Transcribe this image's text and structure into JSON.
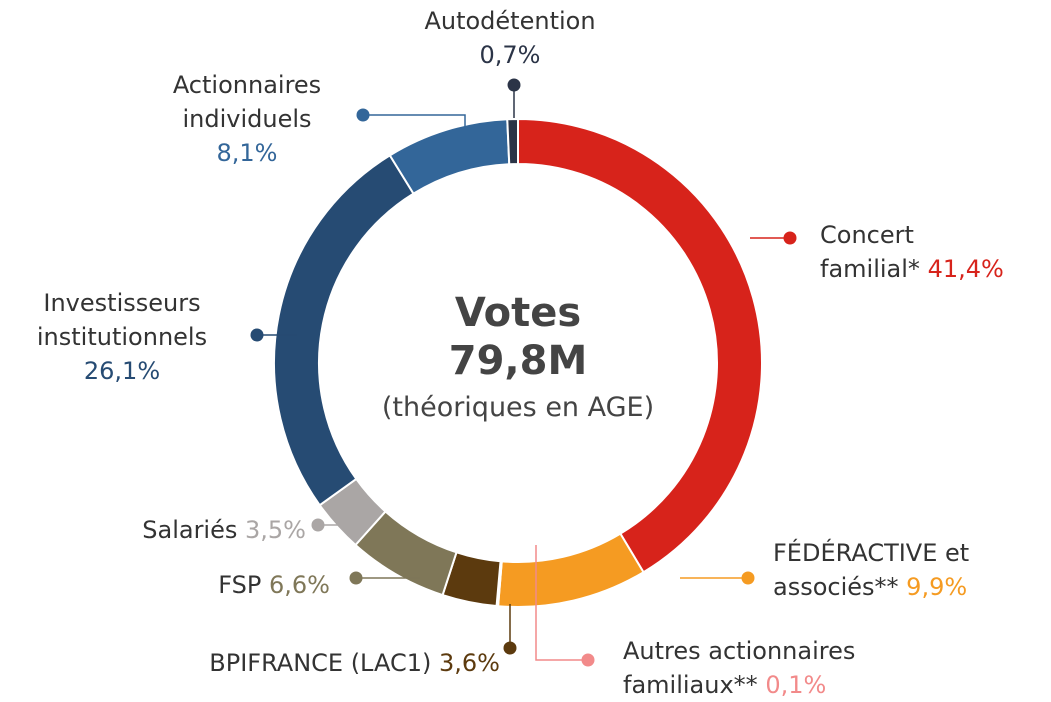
{
  "chart_data": {
    "type": "donut",
    "center": {
      "title": "Votes",
      "total": "79,8M",
      "subtitle": "(théoriques en AGE)"
    },
    "categories": [
      "Concert familial*",
      "FÉDÉRACTIVE et associés**",
      "Autres actionnaires familiaux**",
      "BPIFRANCE (LAC1)",
      "FSP",
      "Salariés",
      "Investisseurs institutionnels",
      "Actionnaires individuels",
      "Autodétention"
    ],
    "values": [
      41.4,
      9.9,
      0.1,
      3.6,
      6.6,
      3.5,
      26.1,
      8.1,
      0.7
    ],
    "value_labels": [
      "41,4%",
      "9,9%",
      "0,1%",
      "3,6%",
      "6,6%",
      "3,5%",
      "26,1%",
      "8,1%",
      "0,7%"
    ],
    "colors": [
      "#d7231b",
      "#f59b22",
      "#f28a8a",
      "#5c3a0e",
      "#7f7758",
      "#aaa6a5",
      "#264b73",
      "#336699",
      "#2b3447"
    ]
  }
}
